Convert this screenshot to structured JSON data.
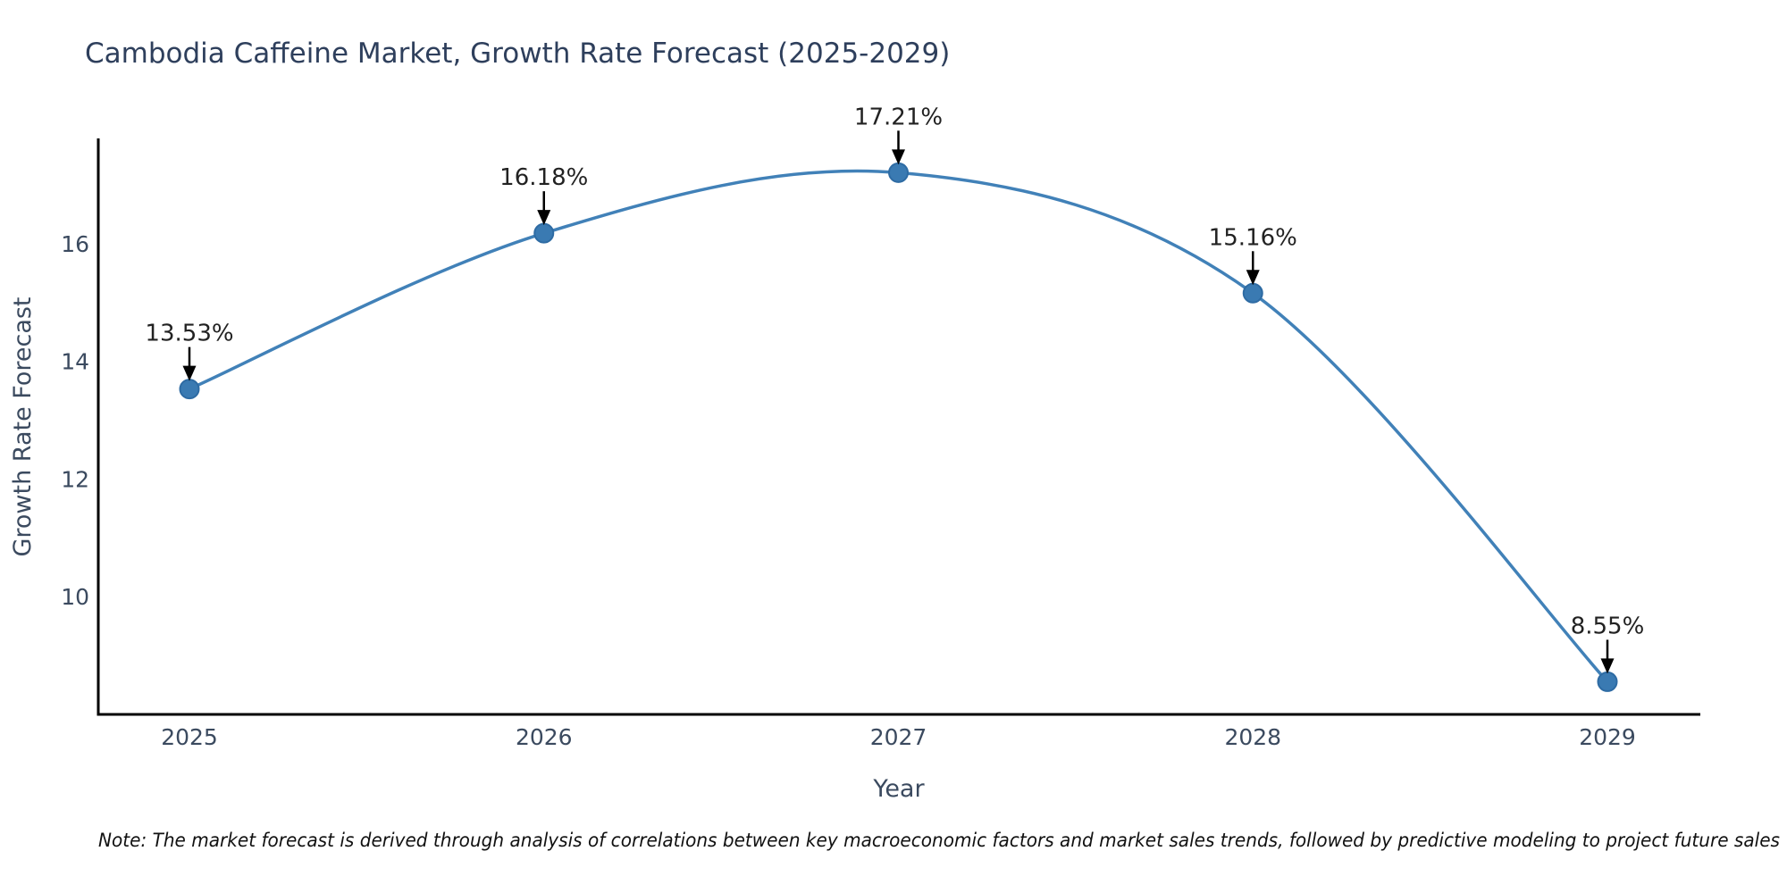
{
  "chart_data": {
    "type": "line",
    "title": "Cambodia Caffeine Market, Growth Rate Forecast (2025-2029)",
    "xlabel": "Year",
    "ylabel": "Growth Rate Forecast",
    "categories": [
      "2025",
      "2026",
      "2027",
      "2028",
      "2029"
    ],
    "values": [
      13.53,
      16.18,
      17.21,
      15.16,
      8.55
    ],
    "point_labels": [
      "13.53%",
      "16.18%",
      "17.21%",
      "15.16%",
      "8.55%"
    ],
    "ytick_labels": [
      "10",
      "12",
      "14",
      "16"
    ],
    "ytick_values": [
      10,
      12,
      14,
      16
    ],
    "ylim": [
      8.0,
      17.8
    ],
    "grid": false,
    "legend": "none",
    "line_color": "#4181b8",
    "marker_color": "#3a7ab2",
    "marker_edge_color": "#2e6ba3",
    "axis_color": "#000000",
    "tick_label_color": "#3b4a5f",
    "title_color": "#2e3f5c",
    "annotation_color": "#222222",
    "arrow_color": "#000000",
    "note": "Note: The market forecast is derived through analysis of correlations between key macroeconomic factors and market sales trends, followed by predictive modeling to project future sales"
  }
}
